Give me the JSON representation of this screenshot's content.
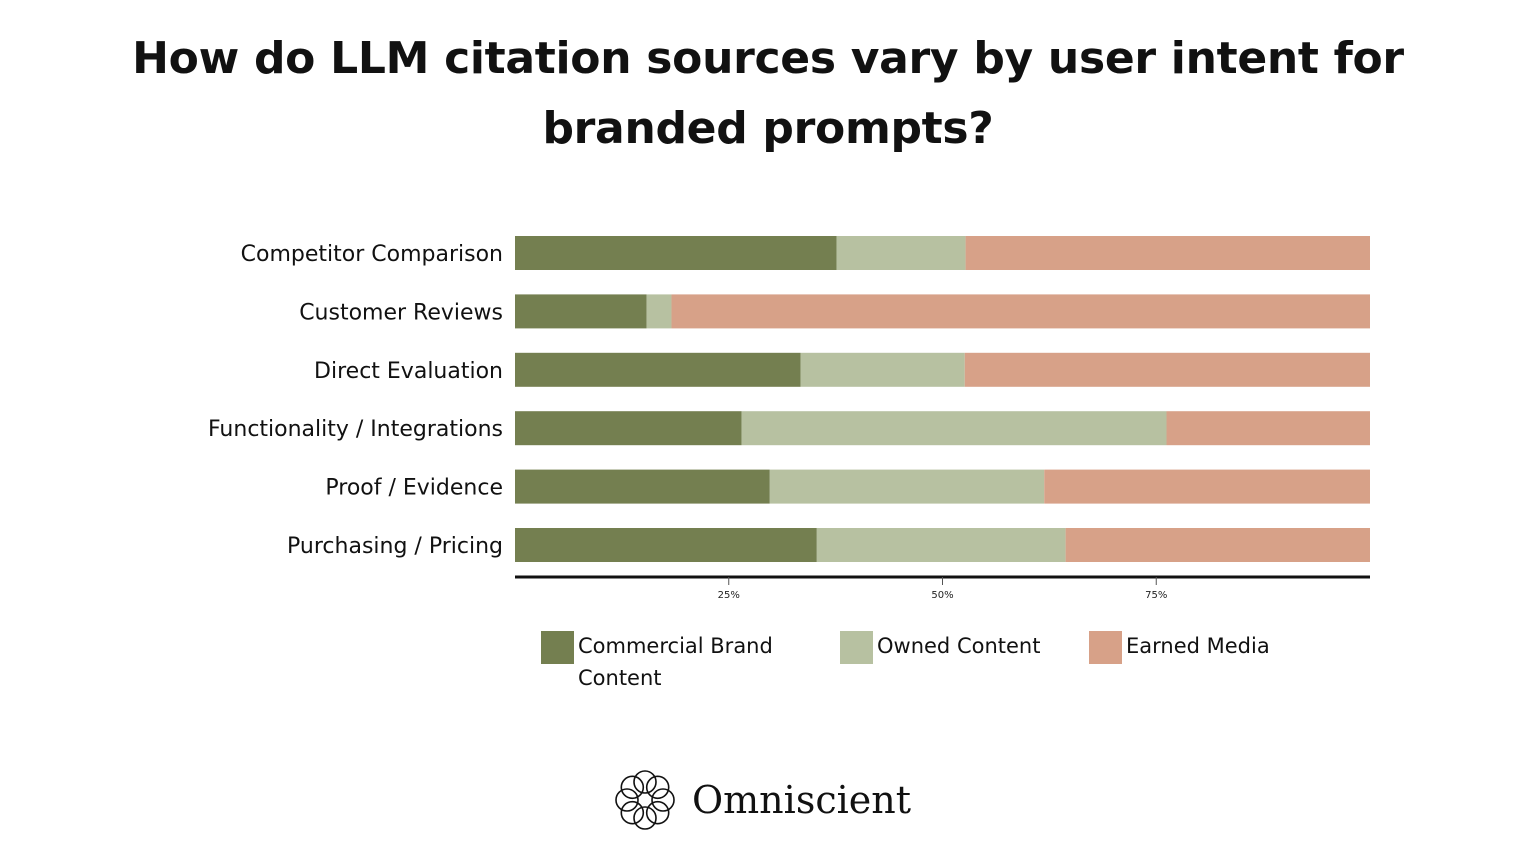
{
  "title_lines": [
    "How do LLM citation sources vary by user intent for",
    "branded prompts?"
  ],
  "chart_data": {
    "type": "bar",
    "orientation": "horizontal",
    "stacked": true,
    "categories": [
      "Competitor Comparison",
      "Customer Reviews",
      "Direct Evaluation",
      "Functionality / Integrations",
      "Proof / Evidence",
      "Purchasing / Pricing"
    ],
    "series": [
      {
        "name": "Commercial Brand Content",
        "color": "#747f50",
        "values": [
          37.6,
          15.4,
          33.4,
          26.5,
          29.8,
          35.3
        ]
      },
      {
        "name": "Owned Content",
        "color": "#b7c1a1",
        "values": [
          15.1,
          2.9,
          19.2,
          49.7,
          32.1,
          29.1
        ]
      },
      {
        "name": "Earned Media",
        "color": "#d7a188",
        "values": [
          47.3,
          81.7,
          47.4,
          23.8,
          38.1,
          35.6
        ]
      }
    ],
    "xlim": [
      0,
      100
    ],
    "x_ticks": [
      25,
      50,
      75
    ],
    "x_tick_labels": [
      "25%",
      "50%",
      "75%"
    ],
    "grid": false,
    "legend_position": "bottom"
  },
  "legend": [
    {
      "lines": [
        "Commercial Brand",
        "Content"
      ],
      "color": "#747f50"
    },
    {
      "lines": [
        "Owned Content"
      ],
      "color": "#b7c1a1"
    },
    {
      "lines": [
        "Earned Media"
      ],
      "color": "#d7a188"
    }
  ],
  "brand": {
    "name": "Omniscient",
    "logo_icon": "omniscient-knot-icon"
  }
}
